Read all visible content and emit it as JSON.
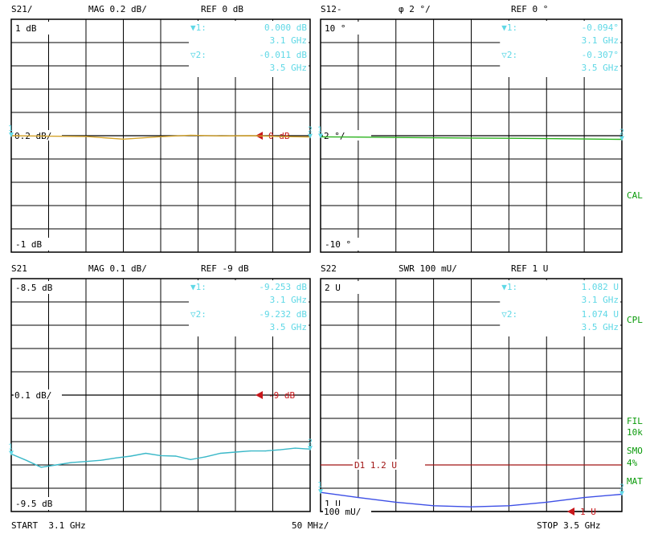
{
  "colors": {
    "grid": "#000000",
    "marker_text": "#5fd8e6",
    "ref_marker": "#c8171b",
    "trace_s21_mag": "#d4a32a",
    "trace_s12_phase": "#2bb31e",
    "trace_s21_mag_fine": "#3ab8c8",
    "trace_s22_swr": "#3d4fe6",
    "limit_line": "#a01414",
    "side_label": "#0a9a0a"
  },
  "side_labels": [
    "CAL",
    "CPL",
    "FIL",
    "10k",
    "SMO",
    "4%",
    "MAT"
  ],
  "footer": {
    "start": "START  3.1 GHz",
    "span": "50 MHz/",
    "stop": "STOP 3.5 GHz"
  },
  "chart_data": [
    {
      "type": "line",
      "header": {
        "param": "S21/",
        "format": "MAG 0.2 dB/",
        "ref": "REF 0 dB"
      },
      "scale_top": "1 dB",
      "scale_ref": "0.2 dB/",
      "scale_bottom": "-1 dB",
      "ref_marker_label": "0 dB",
      "ylim": [
        -1,
        1
      ],
      "ref_value": 0,
      "markers": [
        {
          "label": "▼1:",
          "value": "0.000 dB",
          "freq": "3.1 GHz"
        },
        {
          "label": "▽2:",
          "value": "-0.011 dB",
          "freq": "3.5 GHz"
        }
      ],
      "series": [
        {
          "x": [
            3.1,
            3.15,
            3.2,
            3.25,
            3.3,
            3.34,
            3.38,
            3.42,
            3.46,
            3.5
          ],
          "values": [
            0.0,
            -0.004,
            -0.006,
            -0.03,
            -0.008,
            0.004,
            -0.002,
            0.0,
            -0.006,
            -0.011
          ]
        }
      ]
    },
    {
      "type": "line",
      "header": {
        "param": "S12-",
        "format": "φ    2 °/",
        "ref": "REF 0 °"
      },
      "scale_top": "10 °",
      "scale_ref": "2 °/",
      "scale_bottom": "-10 °",
      "ref_marker_label": "",
      "ylim": [
        -10,
        10
      ],
      "ref_value": 0,
      "markers": [
        {
          "label": "▼1:",
          "value": "-0.094°",
          "freq": "3.1 GHz"
        },
        {
          "label": "▽2:",
          "value": "-0.307°",
          "freq": "3.5 GHz"
        }
      ],
      "series": [
        {
          "x": [
            3.1,
            3.15,
            3.2,
            3.25,
            3.3,
            3.35,
            3.4,
            3.45,
            3.5
          ],
          "values": [
            -0.094,
            -0.12,
            -0.15,
            -0.18,
            -0.2,
            -0.22,
            -0.25,
            -0.28,
            -0.307
          ]
        }
      ]
    },
    {
      "type": "line",
      "header": {
        "param": "S21",
        "format": "MAG 0.1 dB/",
        "ref": "REF -9 dB"
      },
      "scale_top": "-8.5 dB",
      "scale_ref": "0.1 dB/",
      "scale_bottom": "-9.5 dB",
      "ref_marker_label": "-9 dB",
      "ylim": [
        -9.5,
        -8.5
      ],
      "ref_value": -9,
      "markers": [
        {
          "label": "▼1:",
          "value": "-9.253 dB",
          "freq": "3.1 GHz"
        },
        {
          "label": "▽2:",
          "value": "-9.232 dB",
          "freq": "3.5 GHz"
        }
      ],
      "series": [
        {
          "x": [
            3.1,
            3.12,
            3.14,
            3.16,
            3.18,
            3.2,
            3.22,
            3.24,
            3.26,
            3.28,
            3.3,
            3.32,
            3.34,
            3.36,
            3.38,
            3.4,
            3.42,
            3.44,
            3.46,
            3.48,
            3.5
          ],
          "values": [
            -9.253,
            -9.28,
            -9.31,
            -9.3,
            -9.29,
            -9.285,
            -9.28,
            -9.27,
            -9.262,
            -9.25,
            -9.26,
            -9.262,
            -9.277,
            -9.265,
            -9.25,
            -9.245,
            -9.24,
            -9.24,
            -9.235,
            -9.228,
            -9.232
          ]
        }
      ]
    },
    {
      "type": "line",
      "header": {
        "param": "S22",
        "format": "SWR 100 mU/",
        "ref": "REF 1 U"
      },
      "scale_top": "2 U",
      "scale_ref": "100 mU/",
      "scale_bottom": "1 U",
      "ref_marker_label": "1 U",
      "ylim": [
        1,
        2
      ],
      "ref_value": 1,
      "limit_line": {
        "label": "D1  1.2  U",
        "value": 1.2
      },
      "markers": [
        {
          "label": "▼1:",
          "value": "1.082  U",
          "freq": "3.1 GHz"
        },
        {
          "label": "▽2:",
          "value": "1.074  U",
          "freq": "3.5 GHz"
        }
      ],
      "series": [
        {
          "x": [
            3.1,
            3.15,
            3.2,
            3.25,
            3.3,
            3.35,
            3.4,
            3.45,
            3.5
          ],
          "values": [
            1.082,
            1.06,
            1.04,
            1.025,
            1.02,
            1.025,
            1.04,
            1.06,
            1.074
          ]
        }
      ]
    }
  ]
}
